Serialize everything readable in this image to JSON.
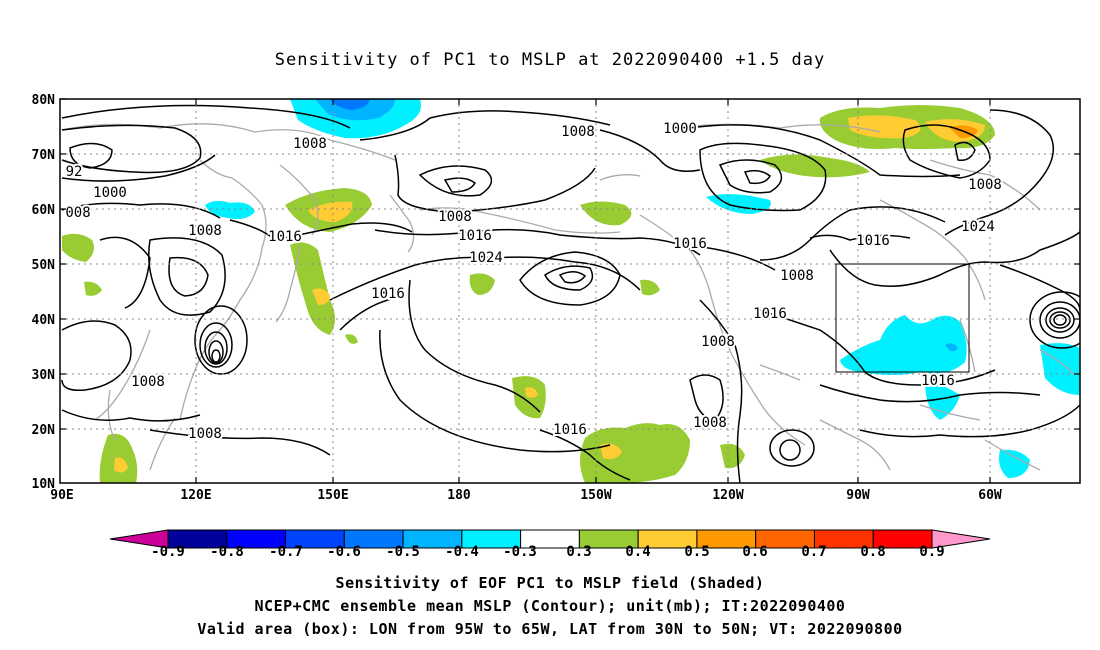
{
  "title": "Sensitivity of PC1 to MSLP at 2022090400 +1.5 day",
  "map": {
    "lat_labels": [
      "80N",
      "70N",
      "60N",
      "50N",
      "40N",
      "30N",
      "20N",
      "10N"
    ],
    "lon_labels": [
      "90E",
      "120E",
      "150E",
      "180",
      "150W",
      "120W",
      "90W",
      "60W"
    ],
    "contour_labels": [
      {
        "text": "1008",
        "kind": "isobar"
      },
      {
        "text": "1008",
        "kind": "isobar"
      },
      {
        "text": "1000",
        "kind": "isobar"
      },
      {
        "text": "92",
        "kind": "isobar"
      },
      {
        "text": "1000",
        "kind": "isobar"
      },
      {
        "text": "008",
        "kind": "isobar"
      },
      {
        "text": "1008",
        "kind": "isobar"
      },
      {
        "text": "1016",
        "kind": "isobar"
      },
      {
        "text": "1008",
        "kind": "isobar"
      },
      {
        "text": "1016",
        "kind": "isobar"
      },
      {
        "text": "1024",
        "kind": "isobar"
      },
      {
        "text": "1016",
        "kind": "isobar"
      },
      {
        "text": "1016",
        "kind": "isobar"
      },
      {
        "text": "1008",
        "kind": "isobar"
      },
      {
        "text": "1016",
        "kind": "isobar"
      },
      {
        "text": "1024",
        "kind": "isobar"
      },
      {
        "text": "1008",
        "kind": "isobar"
      },
      {
        "text": "1016",
        "kind": "isobar"
      },
      {
        "text": "1008",
        "kind": "isobar"
      },
      {
        "text": "1008",
        "kind": "isobar"
      },
      {
        "text": "1008",
        "kind": "isobar"
      },
      {
        "text": "1016",
        "kind": "isobar"
      },
      {
        "text": "1016",
        "kind": "isobar"
      },
      {
        "text": "1008",
        "kind": "isobar"
      },
      {
        "text": "1008",
        "kind": "isobar"
      }
    ]
  },
  "colorbar": {
    "labels": [
      "-0.9",
      "-0.8",
      "-0.7",
      "-0.6",
      "-0.5",
      "-0.4",
      "-0.3",
      "0.3",
      "0.4",
      "0.5",
      "0.6",
      "0.7",
      "0.8",
      "0.9"
    ],
    "colors": [
      "#00009a",
      "#0000ff",
      "#0044ff",
      "#0077ff",
      "#00b4ff",
      "#00f0ff",
      "#ffffff",
      "#99cc33",
      "#ffcc33",
      "#ff9900",
      "#ff6600",
      "#ff3300",
      "#ff0000"
    ],
    "low_end_color": "#cc0099",
    "high_end_color": "#ff99cc"
  },
  "caption": {
    "line1": "Sensitivity of EOF PC1 to MSLP field (Shaded)",
    "line2": "NCEP+CMC ensemble mean MSLP (Contour); unit(mb); IT:2022090400",
    "line3": "Valid area (box): LON from 95W to 65W, LAT from 30N to 50N; VT: 2022090800"
  }
}
